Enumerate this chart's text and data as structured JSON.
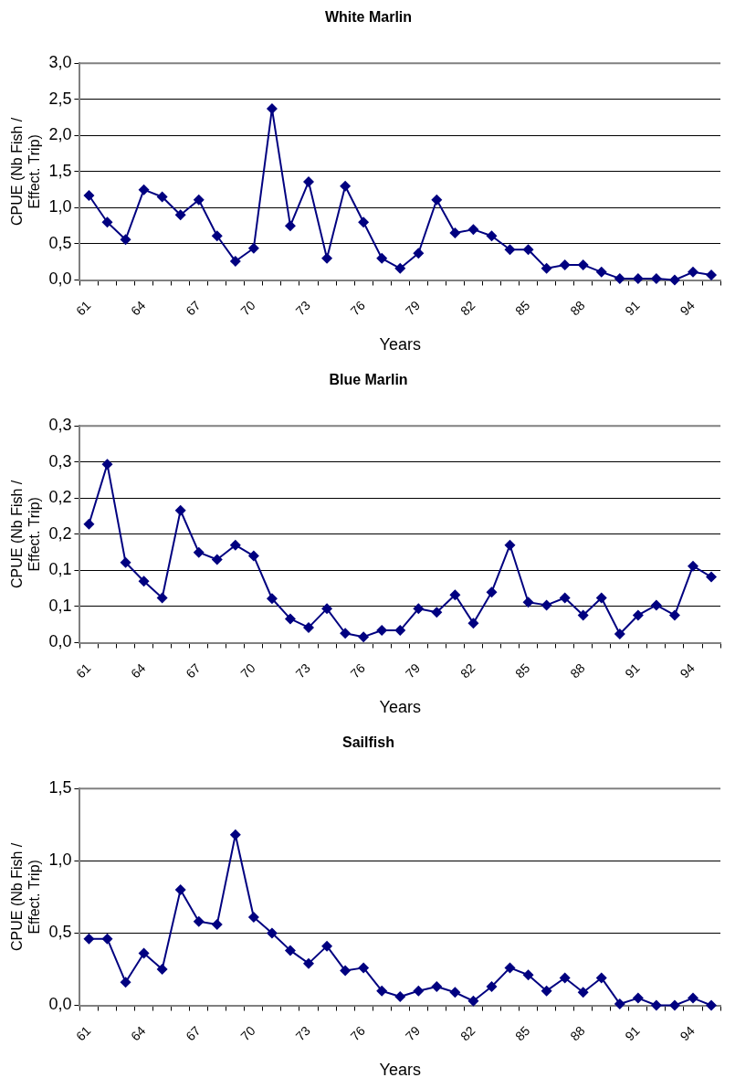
{
  "chart_data": [
    {
      "type": "line",
      "title": "White Marlin",
      "xlabel": "Years",
      "ylabel": "CPUE (Nb Fish / Effect. Trip)",
      "categories": [
        "61",
        null,
        null,
        "64",
        null,
        null,
        "67",
        null,
        null,
        "70",
        null,
        null,
        "73",
        null,
        null,
        "76",
        null,
        null,
        "79",
        null,
        null,
        "82",
        null,
        null,
        "85",
        null,
        null,
        "88",
        null,
        null,
        "91",
        null,
        null,
        "94",
        null
      ],
      "series": [
        {
          "color": "#000080",
          "values": [
            1.17,
            0.8,
            0.56,
            1.25,
            1.15,
            0.9,
            1.11,
            0.61,
            0.26,
            0.44,
            2.37,
            0.75,
            1.36,
            0.3,
            1.3,
            0.8,
            0.3,
            0.16,
            0.37,
            1.11,
            0.65,
            0.7,
            0.61,
            0.42,
            0.42,
            0.16,
            0.21,
            0.21,
            0.11,
            0.02,
            0.02,
            0.02,
            0.0,
            0.11,
            0.07
          ]
        }
      ],
      "ylim": [
        0,
        3
      ],
      "yticks": [
        {
          "value": 0,
          "label": "0,0"
        },
        {
          "value": 0.5,
          "label": "0,5"
        },
        {
          "value": 1,
          "label": "1,0"
        },
        {
          "value": 1.5,
          "label": "1,5"
        },
        {
          "value": 2,
          "label": "2,0"
        },
        {
          "value": 2.5,
          "label": "2,5"
        },
        {
          "value": 3,
          "label": "3,0"
        }
      ],
      "grid": "y",
      "legend": false,
      "marker": "diamond",
      "line_style": "solid"
    },
    {
      "type": "line",
      "title": "Blue Marlin",
      "xlabel": "Years",
      "ylabel": "CPUE (Nb Fish / Effect. Trip)",
      "categories": [
        "61",
        null,
        null,
        "64",
        null,
        null,
        "67",
        null,
        null,
        "70",
        null,
        null,
        "73",
        null,
        null,
        "76",
        null,
        null,
        "79",
        null,
        null,
        "82",
        null,
        null,
        "85",
        null,
        null,
        "88",
        null,
        null,
        "91",
        null,
        null,
        "94",
        null
      ],
      "series": [
        {
          "color": "#000080",
          "values": [
            0.164,
            0.247,
            0.111,
            0.085,
            0.062,
            0.183,
            0.125,
            0.115,
            0.135,
            0.12,
            0.061,
            0.033,
            0.021,
            0.047,
            0.013,
            0.008,
            0.017,
            0.017,
            0.047,
            0.042,
            0.066,
            0.027,
            0.07,
            0.135,
            0.056,
            0.052,
            0.062,
            0.038,
            0.062,
            0.012,
            0.038,
            0.052,
            0.038,
            0.106,
            0.091
          ]
        }
      ],
      "ylim": [
        0,
        0.3
      ],
      "yticks": [
        {
          "value": 0,
          "label": "0,0"
        },
        {
          "value": 0.05,
          "label": "0,1"
        },
        {
          "value": 0.1,
          "label": "0,1"
        },
        {
          "value": 0.15,
          "label": "0,2"
        },
        {
          "value": 0.2,
          "label": "0,2"
        },
        {
          "value": 0.25,
          "label": "0,3"
        },
        {
          "value": 0.3,
          "label": "0,3"
        }
      ],
      "grid": "y",
      "legend": false,
      "marker": "diamond",
      "line_style": "solid"
    },
    {
      "type": "line",
      "title": "Sailfish",
      "xlabel": "Years",
      "ylabel": "CPUE (Nb Fish / Effect. Trip)",
      "categories": [
        "61",
        null,
        null,
        "64",
        null,
        null,
        "67",
        null,
        null,
        "70",
        null,
        null,
        "73",
        null,
        null,
        "76",
        null,
        null,
        "79",
        null,
        null,
        "82",
        null,
        null,
        "85",
        null,
        null,
        "88",
        null,
        null,
        "91",
        null,
        null,
        "94",
        null
      ],
      "series": [
        {
          "color": "#000080",
          "values": [
            0.46,
            0.46,
            0.16,
            0.36,
            0.25,
            0.8,
            0.58,
            0.56,
            1.18,
            0.61,
            0.5,
            0.38,
            0.29,
            0.41,
            0.24,
            0.26,
            0.1,
            0.06,
            0.1,
            0.13,
            0.09,
            0.03,
            0.13,
            0.26,
            0.21,
            0.1,
            0.19,
            0.09,
            0.19,
            0.01,
            0.05,
            0.0,
            0.0,
            0.05,
            0.0
          ]
        }
      ],
      "ylim": [
        0,
        1.5
      ],
      "yticks": [
        {
          "value": 0,
          "label": "0,0"
        },
        {
          "value": 0.5,
          "label": "0,5"
        },
        {
          "value": 1,
          "label": "1,0"
        },
        {
          "value": 1.5,
          "label": "1,5"
        }
      ],
      "grid": "y",
      "legend": false,
      "marker": "diamond",
      "line_style": "solid"
    }
  ]
}
